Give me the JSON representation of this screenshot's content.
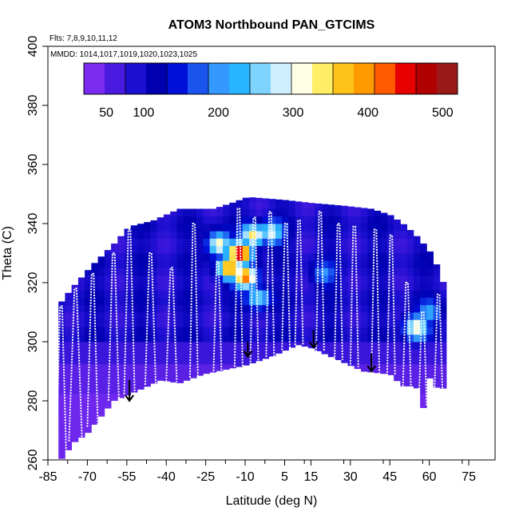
{
  "chart_data": {
    "type": "heatmap",
    "title": "ATOM3 Northbound PAN_GTCIMS",
    "flights_note": "Flts: 7,8,9,10,11,12",
    "dates_note": "MMDD: 1014,1017,1019,1020,1023,1025",
    "xlabel": "Latitude (deg N)",
    "ylabel": "Theta (C)",
    "xlim": [
      -85,
      85
    ],
    "ylim": [
      260,
      400
    ],
    "x_ticks": [
      -85,
      -70,
      -55,
      -40,
      -25,
      -10,
      5,
      15,
      30,
      45,
      60,
      75
    ],
    "x_ticks_labeled": [
      "-85",
      "-70",
      "-55",
      "-40",
      "-25",
      "-10",
      "5",
      "15",
      "30",
      "45",
      "60",
      "75"
    ],
    "y_ticks": [
      260,
      280,
      300,
      320,
      340,
      360,
      380,
      400
    ],
    "y_tick_labels": [
      "260",
      "280",
      "300",
      "320",
      "340",
      "360",
      "380",
      "400"
    ],
    "colorbar": {
      "range": [
        20,
        520
      ],
      "tick_values": [
        50,
        100,
        200,
        300,
        400,
        500
      ],
      "tick_labels": [
        "50",
        "100",
        "200",
        "300",
        "400",
        "500"
      ],
      "colors": [
        "#7b2cf0",
        "#4a1ae0",
        "#1c0fd0",
        "#0000b0",
        "#0010d8",
        "#1a55ef",
        "#3399ff",
        "#28b4ff",
        "#7fd4ff",
        "#cfeeff",
        "#ffffe6",
        "#ffee66",
        "#ffc21a",
        "#ff9a00",
        "#ff5a00",
        "#e80000",
        "#b00000",
        "#9a1a1a"
      ]
    },
    "bottom_boundary": [
      [
        -81,
        259
      ],
      [
        -75,
        266
      ],
      [
        -70,
        269
      ],
      [
        -60,
        280
      ],
      [
        -52,
        283
      ],
      [
        -42,
        287
      ],
      [
        -35,
        286
      ],
      [
        -26,
        289
      ],
      [
        -10,
        292
      ],
      [
        0,
        295
      ],
      [
        10,
        299
      ],
      [
        15,
        298
      ],
      [
        25,
        294
      ],
      [
        35,
        290
      ],
      [
        45,
        289
      ],
      [
        50,
        285
      ],
      [
        55,
        285
      ],
      [
        58,
        277
      ],
      [
        60,
        288
      ],
      [
        64,
        283
      ],
      [
        66,
        285
      ]
    ],
    "top_boundary": [
      [
        -82,
        311
      ],
      [
        -76,
        318
      ],
      [
        -68,
        326
      ],
      [
        -60,
        333
      ],
      [
        -54,
        339
      ],
      [
        -45,
        341
      ],
      [
        -35,
        345
      ],
      [
        -22,
        345
      ],
      [
        -15,
        347
      ],
      [
        -9,
        349
      ],
      [
        5,
        348
      ],
      [
        15,
        347
      ],
      [
        28,
        346
      ],
      [
        38,
        345
      ],
      [
        45,
        343
      ],
      [
        50,
        340
      ],
      [
        55,
        336
      ],
      [
        60,
        331
      ],
      [
        64,
        324
      ],
      [
        67,
        315
      ]
    ],
    "high_values": [
      {
        "lat": -16,
        "theta": 325,
        "value": 420
      },
      {
        "lat": -12,
        "theta": 330,
        "value": 500
      },
      {
        "lat": -10,
        "theta": 322,
        "value": 430
      },
      {
        "lat": -7,
        "theta": 336,
        "value": 350
      },
      {
        "lat": 0,
        "theta": 337,
        "value": 300
      },
      {
        "lat": -20,
        "theta": 333,
        "value": 330
      },
      {
        "lat": -5,
        "theta": 315,
        "value": 260
      },
      {
        "lat": 20,
        "theta": 323,
        "value": 200
      },
      {
        "lat": 55,
        "theta": 305,
        "value": 330
      },
      {
        "lat": 60,
        "theta": 310,
        "value": 220
      }
    ],
    "arrows": [
      {
        "lat": -54,
        "theta_start": 287,
        "theta_end": 280
      },
      {
        "lat": -9,
        "theta_start": 300,
        "theta_end": 295
      },
      {
        "lat": 16,
        "theta_start": 304,
        "theta_end": 298
      },
      {
        "lat": 38,
        "theta_start": 296,
        "theta_end": 290
      }
    ],
    "profiles": [
      {
        "lat_start": -82,
        "lat_end": -78,
        "theta_top": 312
      },
      {
        "lat_start": -77,
        "lat_end": -72,
        "theta_top": 318
      },
      {
        "lat_start": -70,
        "lat_end": -66,
        "theta_top": 323
      },
      {
        "lat_start": -62,
        "lat_end": -58,
        "theta_top": 330
      },
      {
        "lat_start": -56,
        "lat_end": -52,
        "theta_top": 338
      },
      {
        "lat_start": -48,
        "lat_end": -44,
        "theta_top": 330
      },
      {
        "lat_start": -40,
        "lat_end": -36,
        "theta_top": 325
      },
      {
        "lat_start": -31,
        "lat_end": -28,
        "theta_top": 340
      },
      {
        "lat_start": -22,
        "lat_end": -19,
        "theta_top": 327
      },
      {
        "lat_start": -14,
        "lat_end": -11,
        "theta_top": 345
      },
      {
        "lat_start": -8,
        "lat_end": -5,
        "theta_top": 342
      },
      {
        "lat_start": -2,
        "lat_end": 1,
        "theta_top": 344
      },
      {
        "lat_start": 4,
        "lat_end": 7,
        "theta_top": 340
      },
      {
        "lat_start": 9,
        "lat_end": 12,
        "theta_top": 341
      },
      {
        "lat_start": 17,
        "lat_end": 20,
        "theta_top": 344
      },
      {
        "lat_start": 24,
        "lat_end": 27,
        "theta_top": 340
      },
      {
        "lat_start": 30,
        "lat_end": 33,
        "theta_top": 339
      },
      {
        "lat_start": 38,
        "lat_end": 41,
        "theta_top": 338
      },
      {
        "lat_start": 44,
        "lat_end": 47,
        "theta_top": 336
      },
      {
        "lat_start": 50,
        "lat_end": 53,
        "theta_top": 320
      },
      {
        "lat_start": 56,
        "lat_end": 59,
        "theta_top": 310
      },
      {
        "lat_start": 62,
        "lat_end": 65,
        "theta_top": 316
      }
    ]
  }
}
